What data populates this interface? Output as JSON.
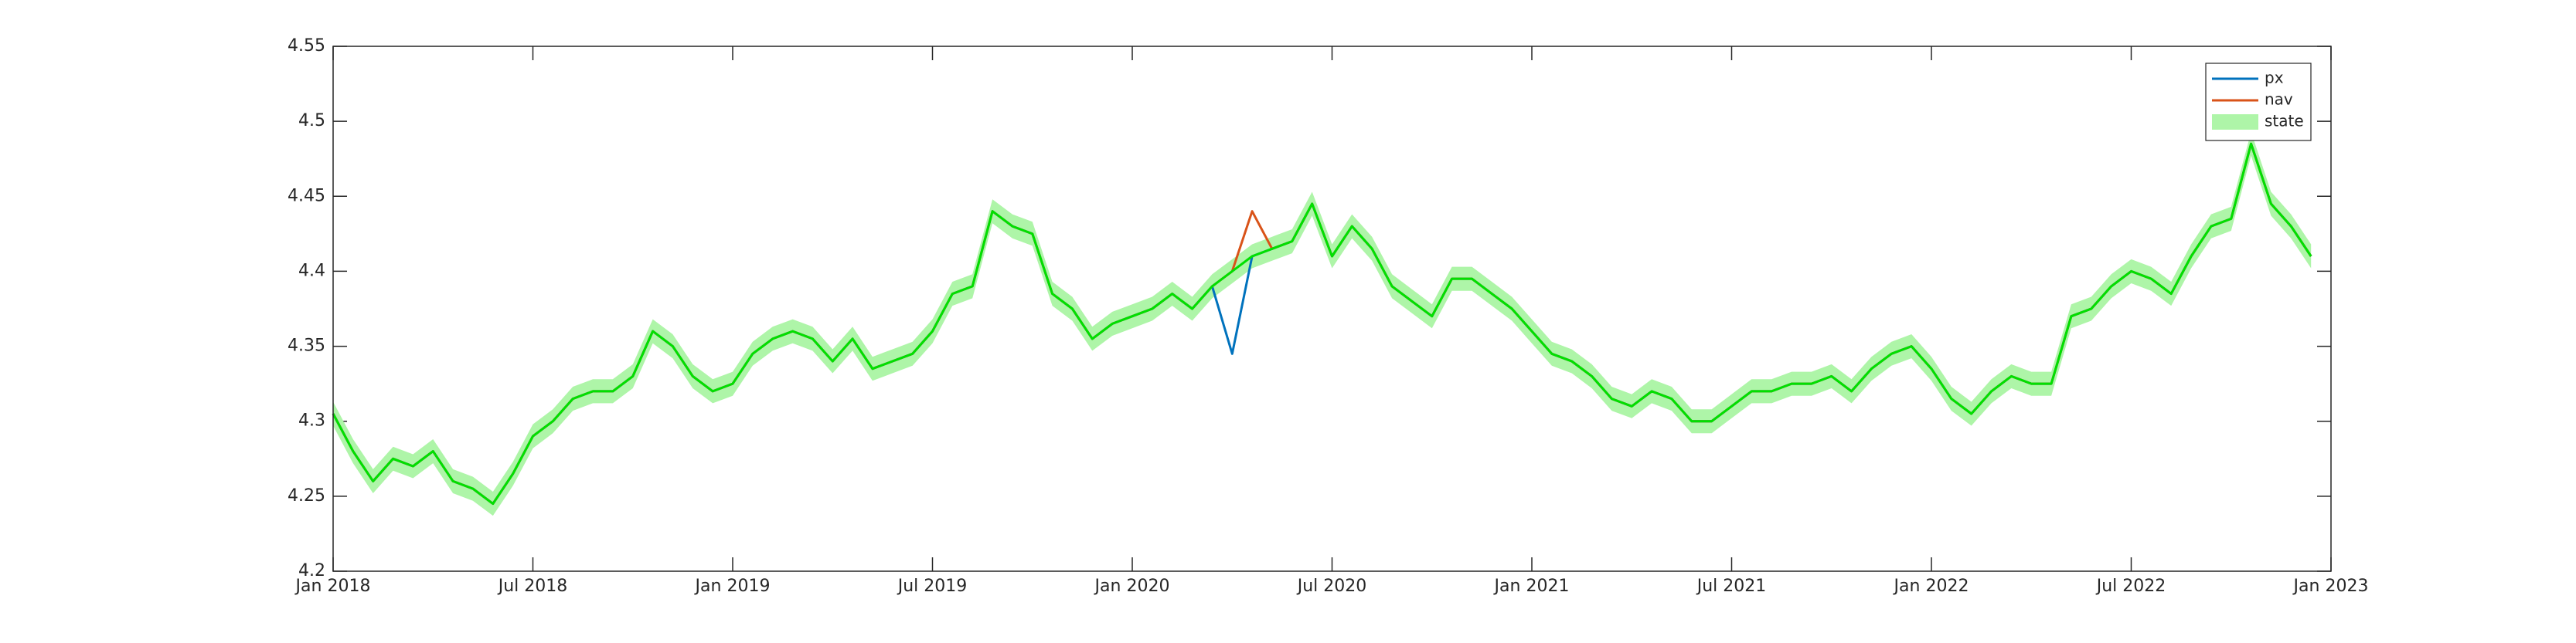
{
  "chart_data": {
    "type": "line",
    "x": [
      2018,
      2018.05,
      2018.1,
      2018.15,
      2018.2,
      2018.25,
      2018.3,
      2018.35,
      2018.4,
      2018.45,
      2018.5,
      2018.55,
      2018.6,
      2018.65,
      2018.7,
      2018.75,
      2018.8,
      2018.85,
      2018.9,
      2018.95,
      2019,
      2019.05,
      2019.1,
      2019.15,
      2019.2,
      2019.25,
      2019.3,
      2019.35,
      2019.4,
      2019.45,
      2019.5,
      2019.55,
      2019.6,
      2019.65,
      2019.7,
      2019.75,
      2019.8,
      2019.85,
      2019.9,
      2019.95,
      2020,
      2020.05,
      2020.1,
      2020.15,
      2020.2,
      2020.25,
      2020.3,
      2020.35,
      2020.4,
      2020.45,
      2020.5,
      2020.55,
      2020.6,
      2020.65,
      2020.7,
      2020.75,
      2020.8,
      2020.85,
      2020.9,
      2020.95,
      2021,
      2021.05,
      2021.1,
      2021.15,
      2021.2,
      2021.25,
      2021.3,
      2021.35,
      2021.4,
      2021.45,
      2021.5,
      2021.55,
      2021.6,
      2021.65,
      2021.7,
      2021.75,
      2021.8,
      2021.85,
      2021.9,
      2021.95,
      2022,
      2022.05,
      2022.1,
      2022.15,
      2022.2,
      2022.25,
      2022.3,
      2022.35,
      2022.4,
      2022.45,
      2022.5,
      2022.55,
      2022.6,
      2022.65,
      2022.7,
      2022.75,
      2022.8,
      2022.85,
      2022.9,
      2022.95
    ],
    "series": [
      {
        "name": "px",
        "color": "#0072bd",
        "values": [
          4.305,
          4.28,
          4.26,
          4.275,
          4.27,
          4.28,
          4.26,
          4.255,
          4.245,
          4.265,
          4.29,
          4.3,
          4.315,
          4.32,
          4.32,
          4.33,
          4.36,
          4.35,
          4.33,
          4.32,
          4.325,
          4.345,
          4.355,
          4.36,
          4.355,
          4.34,
          4.355,
          4.335,
          4.34,
          4.345,
          4.36,
          4.385,
          4.39,
          4.44,
          4.43,
          4.425,
          4.385,
          4.375,
          4.355,
          4.365,
          4.37,
          4.375,
          4.385,
          4.375,
          4.39,
          4.345,
          4.41,
          4.415,
          4.42,
          4.445,
          4.41,
          4.43,
          4.415,
          4.39,
          4.38,
          4.37,
          4.395,
          4.395,
          4.385,
          4.375,
          4.36,
          4.345,
          4.34,
          4.33,
          4.315,
          4.31,
          4.32,
          4.315,
          4.3,
          4.3,
          4.31,
          4.32,
          4.32,
          4.325,
          4.325,
          4.33,
          4.32,
          4.335,
          4.345,
          4.35,
          4.335,
          4.315,
          4.305,
          4.32,
          4.33,
          4.325,
          4.325,
          4.37,
          4.375,
          4.39,
          4.4,
          4.395,
          4.385,
          4.41,
          4.43,
          4.435,
          4.485,
          4.445,
          4.43,
          4.41
        ]
      },
      {
        "name": "nav",
        "color": "#d95319",
        "values": [
          4.305,
          4.28,
          4.26,
          4.275,
          4.27,
          4.28,
          4.26,
          4.255,
          4.245,
          4.265,
          4.29,
          4.3,
          4.315,
          4.32,
          4.32,
          4.33,
          4.36,
          4.35,
          4.33,
          4.32,
          4.325,
          4.345,
          4.355,
          4.36,
          4.355,
          4.34,
          4.355,
          4.335,
          4.34,
          4.345,
          4.36,
          4.385,
          4.39,
          4.44,
          4.43,
          4.425,
          4.385,
          4.375,
          4.355,
          4.365,
          4.37,
          4.375,
          4.385,
          4.375,
          4.39,
          4.4,
          4.44,
          4.415,
          4.42,
          4.445,
          4.41,
          4.43,
          4.415,
          4.39,
          4.38,
          4.37,
          4.395,
          4.395,
          4.385,
          4.375,
          4.36,
          4.345,
          4.34,
          4.33,
          4.315,
          4.31,
          4.32,
          4.315,
          4.3,
          4.3,
          4.31,
          4.32,
          4.32,
          4.325,
          4.325,
          4.33,
          4.32,
          4.335,
          4.345,
          4.35,
          4.335,
          4.315,
          4.305,
          4.32,
          4.33,
          4.325,
          4.325,
          4.37,
          4.375,
          4.39,
          4.4,
          4.395,
          4.385,
          4.41,
          4.43,
          4.435,
          4.485,
          4.445,
          4.43,
          4.41
        ]
      },
      {
        "name": "state",
        "color": "#00e000",
        "band_color": "#aef5a8",
        "band": 0.008,
        "values": [
          4.305,
          4.28,
          4.26,
          4.275,
          4.27,
          4.28,
          4.26,
          4.255,
          4.245,
          4.265,
          4.29,
          4.3,
          4.315,
          4.32,
          4.32,
          4.33,
          4.36,
          4.35,
          4.33,
          4.32,
          4.325,
          4.345,
          4.355,
          4.36,
          4.355,
          4.34,
          4.355,
          4.335,
          4.34,
          4.345,
          4.36,
          4.385,
          4.39,
          4.44,
          4.43,
          4.425,
          4.385,
          4.375,
          4.355,
          4.365,
          4.37,
          4.375,
          4.385,
          4.375,
          4.39,
          4.4,
          4.41,
          4.415,
          4.42,
          4.445,
          4.41,
          4.43,
          4.415,
          4.39,
          4.38,
          4.37,
          4.395,
          4.395,
          4.385,
          4.375,
          4.36,
          4.345,
          4.34,
          4.33,
          4.315,
          4.31,
          4.32,
          4.315,
          4.3,
          4.3,
          4.31,
          4.32,
          4.32,
          4.325,
          4.325,
          4.33,
          4.32,
          4.335,
          4.345,
          4.35,
          4.335,
          4.315,
          4.305,
          4.32,
          4.33,
          4.325,
          4.325,
          4.37,
          4.375,
          4.39,
          4.4,
          4.395,
          4.385,
          4.41,
          4.43,
          4.435,
          4.485,
          4.445,
          4.43,
          4.41
        ]
      }
    ],
    "xlim": [
      2018,
      2023
    ],
    "xticks": [
      {
        "value": 2018,
        "label": "Jan 2018"
      },
      {
        "value": 2018.5,
        "label": "Jul 2018"
      },
      {
        "value": 2019,
        "label": "Jan 2019"
      },
      {
        "value": 2019.5,
        "label": "Jul 2019"
      },
      {
        "value": 2020,
        "label": "Jan 2020"
      },
      {
        "value": 2020.5,
        "label": "Jul 2020"
      },
      {
        "value": 2021,
        "label": "Jan 2021"
      },
      {
        "value": 2021.5,
        "label": "Jul 2021"
      },
      {
        "value": 2022,
        "label": "Jan 2022"
      },
      {
        "value": 2022.5,
        "label": "Jul 2022"
      },
      {
        "value": 2023,
        "label": "Jan 2023"
      }
    ],
    "ylim": [
      4.2,
      4.55
    ],
    "yticks": [
      4.2,
      4.25,
      4.3,
      4.35,
      4.4,
      4.45,
      4.5,
      4.55
    ],
    "legend": "upper-right"
  }
}
